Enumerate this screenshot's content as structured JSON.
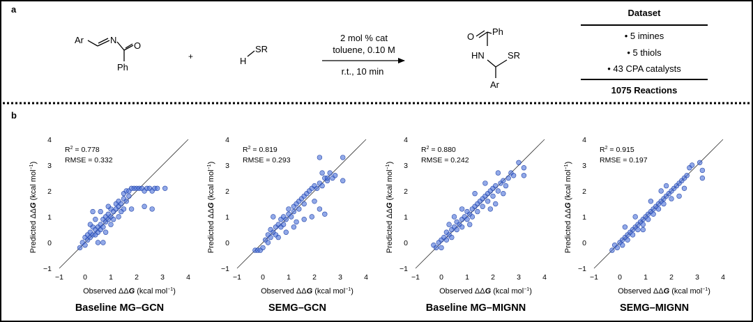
{
  "panel_a": {
    "label": "a",
    "reactant1": {
      "ar": "Ar",
      "n": "N",
      "o": "O",
      "ph": "Ph"
    },
    "plus": "+",
    "reactant2": {
      "h": "H",
      "sr": "SR"
    },
    "conditions": {
      "line1": "2 mol % cat",
      "line2": "toluene, 0.10 M",
      "line3": "r.t., 10 min"
    },
    "product": {
      "o": "O",
      "ph": "Ph",
      "hn": "HN",
      "sr": "SR",
      "ar": "Ar"
    },
    "dataset": {
      "title": "Dataset",
      "items": [
        "• 5 imines",
        "• 5 thiols",
        "• 43 CPA catalysts"
      ],
      "total": "1075 Reactions"
    }
  },
  "panel_b": {
    "label": "b",
    "xlabel": "Observed ΔΔG (kcal mol⁻¹)",
    "ylabel": "Predicted ΔΔG (kcal mol⁻¹)",
    "ticks": [
      "−1",
      "0",
      "1",
      "2",
      "3",
      "4"
    ]
  },
  "colors": {
    "point_fill": "#4a6fd8",
    "point_stroke": "#2244a8",
    "line": "#333333"
  },
  "chart_data": [
    {
      "type": "scatter",
      "title": "Baseline MG–GCN",
      "xlabel": "Observed ΔΔG (kcal mol⁻¹)",
      "ylabel": "Predicted ΔΔG (kcal mol⁻¹)",
      "xlim": [
        -1,
        4
      ],
      "ylim": [
        -1,
        4
      ],
      "stats": {
        "r2": "0.778",
        "rmse": "0.332"
      },
      "identity_line": true,
      "grid": false,
      "points": [
        [
          -0.2,
          -0.2
        ],
        [
          -0.1,
          0.0
        ],
        [
          0.0,
          -0.1
        ],
        [
          0.0,
          0.2
        ],
        [
          0.1,
          0.3
        ],
        [
          0.1,
          0.1
        ],
        [
          0.2,
          0.4
        ],
        [
          0.2,
          0.2
        ],
        [
          0.3,
          0.3
        ],
        [
          0.3,
          0.6
        ],
        [
          0.4,
          0.5
        ],
        [
          0.4,
          0.3
        ],
        [
          0.5,
          0.6
        ],
        [
          0.5,
          0.4
        ],
        [
          0.6,
          0.7
        ],
        [
          0.6,
          0.5
        ],
        [
          0.7,
          0.9
        ],
        [
          0.7,
          0.6
        ],
        [
          0.8,
          0.8
        ],
        [
          0.8,
          1.0
        ],
        [
          0.9,
          0.9
        ],
        [
          0.9,
          1.1
        ],
        [
          1.0,
          1.0
        ],
        [
          1.0,
          1.3
        ],
        [
          1.1,
          1.2
        ],
        [
          1.1,
          0.9
        ],
        [
          1.2,
          1.3
        ],
        [
          1.2,
          1.5
        ],
        [
          1.3,
          1.4
        ],
        [
          1.3,
          1.6
        ],
        [
          1.4,
          1.5
        ],
        [
          1.4,
          1.2
        ],
        [
          1.5,
          1.7
        ],
        [
          1.5,
          1.9
        ],
        [
          1.6,
          2.0
        ],
        [
          1.6,
          1.6
        ],
        [
          1.7,
          2.0
        ],
        [
          1.7,
          1.8
        ],
        [
          1.8,
          2.1
        ],
        [
          1.9,
          2.1
        ],
        [
          2.0,
          2.1
        ],
        [
          2.1,
          2.1
        ],
        [
          2.2,
          2.1
        ],
        [
          2.3,
          2.0
        ],
        [
          2.4,
          2.1
        ],
        [
          2.5,
          2.1
        ],
        [
          2.6,
          2.0
        ],
        [
          2.7,
          2.1
        ],
        [
          2.8,
          2.1
        ],
        [
          3.1,
          2.1
        ],
        [
          2.3,
          1.4
        ],
        [
          2.6,
          1.3
        ],
        [
          1.8,
          1.3
        ],
        [
          0.3,
          1.2
        ],
        [
          0.6,
          1.2
        ],
        [
          0.9,
          1.4
        ],
        [
          0.5,
          0.0
        ],
        [
          0.7,
          0.0
        ],
        [
          1.0,
          0.7
        ],
        [
          1.3,
          1.0
        ],
        [
          0.2,
          0.7
        ],
        [
          0.8,
          0.4
        ],
        [
          1.5,
          1.3
        ],
        [
          0.4,
          0.9
        ]
      ]
    },
    {
      "type": "scatter",
      "title": "SEMG–GCN",
      "xlabel": "Observed ΔΔG (kcal mol⁻¹)",
      "ylabel": "Predicted ΔΔG (kcal mol⁻¹)",
      "xlim": [
        -1,
        4
      ],
      "ylim": [
        -1,
        4
      ],
      "stats": {
        "r2": "0.819",
        "rmse": "0.293"
      },
      "identity_line": true,
      "grid": false,
      "points": [
        [
          -0.3,
          -0.3
        ],
        [
          -0.2,
          -0.3
        ],
        [
          -0.1,
          -0.3
        ],
        [
          0.0,
          -0.2
        ],
        [
          0.1,
          0.1
        ],
        [
          0.2,
          0.0
        ],
        [
          0.2,
          0.3
        ],
        [
          0.3,
          0.5
        ],
        [
          0.3,
          0.2
        ],
        [
          0.4,
          0.4
        ],
        [
          0.5,
          0.6
        ],
        [
          0.5,
          0.3
        ],
        [
          0.6,
          0.7
        ],
        [
          0.7,
          0.6
        ],
        [
          0.7,
          0.9
        ],
        [
          0.8,
          1.0
        ],
        [
          0.8,
          0.7
        ],
        [
          0.9,
          0.9
        ],
        [
          1.0,
          1.1
        ],
        [
          1.0,
          1.3
        ],
        [
          1.1,
          1.0
        ],
        [
          1.2,
          1.4
        ],
        [
          1.2,
          1.2
        ],
        [
          1.3,
          1.5
        ],
        [
          1.4,
          1.3
        ],
        [
          1.4,
          1.6
        ],
        [
          1.5,
          1.7
        ],
        [
          1.6,
          1.8
        ],
        [
          1.6,
          1.5
        ],
        [
          1.7,
          1.9
        ],
        [
          1.8,
          2.0
        ],
        [
          1.9,
          2.1
        ],
        [
          2.0,
          2.2
        ],
        [
          2.1,
          2.1
        ],
        [
          2.2,
          2.3
        ],
        [
          2.3,
          2.2
        ],
        [
          2.4,
          2.5
        ],
        [
          2.5,
          2.4
        ],
        [
          2.6,
          2.7
        ],
        [
          2.7,
          2.5
        ],
        [
          2.8,
          2.6
        ],
        [
          3.1,
          2.4
        ],
        [
          3.1,
          3.3
        ],
        [
          2.2,
          3.3
        ],
        [
          2.3,
          2.7
        ],
        [
          2.5,
          2.5
        ],
        [
          2.2,
          1.3
        ],
        [
          2.4,
          1.1
        ],
        [
          1.9,
          1.0
        ],
        [
          0.9,
          0.4
        ],
        [
          1.2,
          0.6
        ],
        [
          0.4,
          1.0
        ],
        [
          1.6,
          0.9
        ],
        [
          2.0,
          1.6
        ],
        [
          0.6,
          0.2
        ],
        [
          1.3,
          0.8
        ]
      ]
    },
    {
      "type": "scatter",
      "title": "Baseline MG–MIGNN",
      "xlabel": "Observed ΔΔG (kcal mol⁻¹)",
      "ylabel": "Predicted ΔΔG (kcal mol⁻¹)",
      "xlim": [
        -1,
        4
      ],
      "ylim": [
        -1,
        4
      ],
      "stats": {
        "r2": "0.880",
        "rmse": "0.242"
      },
      "identity_line": true,
      "grid": false,
      "points": [
        [
          -0.3,
          -0.1
        ],
        [
          -0.2,
          -0.2
        ],
        [
          -0.1,
          0.0
        ],
        [
          0.0,
          0.1
        ],
        [
          0.0,
          -0.2
        ],
        [
          0.1,
          0.2
        ],
        [
          0.2,
          0.1
        ],
        [
          0.2,
          0.4
        ],
        [
          0.3,
          0.3
        ],
        [
          0.4,
          0.5
        ],
        [
          0.4,
          0.2
        ],
        [
          0.5,
          0.6
        ],
        [
          0.6,
          0.5
        ],
        [
          0.6,
          0.8
        ],
        [
          0.7,
          0.7
        ],
        [
          0.8,
          0.9
        ],
        [
          0.8,
          0.6
        ],
        [
          0.9,
          1.0
        ],
        [
          1.0,
          0.9
        ],
        [
          1.0,
          1.2
        ],
        [
          1.1,
          1.1
        ],
        [
          1.2,
          1.3
        ],
        [
          1.2,
          1.0
        ],
        [
          1.3,
          1.4
        ],
        [
          1.4,
          1.5
        ],
        [
          1.4,
          1.2
        ],
        [
          1.5,
          1.6
        ],
        [
          1.6,
          1.7
        ],
        [
          1.6,
          1.4
        ],
        [
          1.7,
          1.8
        ],
        [
          1.8,
          1.9
        ],
        [
          1.8,
          1.6
        ],
        [
          1.9,
          2.0
        ],
        [
          2.0,
          2.1
        ],
        [
          2.0,
          1.8
        ],
        [
          2.1,
          2.2
        ],
        [
          2.2,
          2.0
        ],
        [
          2.3,
          2.3
        ],
        [
          2.4,
          2.4
        ],
        [
          2.5,
          2.2
        ],
        [
          2.6,
          2.5
        ],
        [
          2.7,
          2.7
        ],
        [
          2.8,
          2.6
        ],
        [
          3.0,
          3.1
        ],
        [
          3.2,
          2.6
        ],
        [
          3.2,
          2.9
        ],
        [
          2.1,
          1.5
        ],
        [
          1.9,
          1.3
        ],
        [
          0.5,
          1.0
        ],
        [
          1.1,
          0.7
        ],
        [
          0.3,
          0.7
        ],
        [
          2.4,
          1.9
        ],
        [
          1.3,
          1.9
        ],
        [
          0.8,
          1.3
        ],
        [
          1.7,
          2.3
        ],
        [
          2.2,
          2.7
        ]
      ]
    },
    {
      "type": "scatter",
      "title": "SEMG–MIGNN",
      "xlabel": "Observed ΔΔG (kcal mol⁻¹)",
      "ylabel": "Predicted ΔΔG (kcal mol⁻¹)",
      "xlim": [
        -1,
        4
      ],
      "ylim": [
        -1,
        4
      ],
      "stats": {
        "r2": "0.915",
        "rmse": "0.197"
      },
      "identity_line": true,
      "grid": false,
      "points": [
        [
          -0.3,
          -0.3
        ],
        [
          -0.2,
          -0.1
        ],
        [
          -0.1,
          -0.2
        ],
        [
          0.0,
          0.0
        ],
        [
          0.1,
          0.1
        ],
        [
          0.1,
          -0.1
        ],
        [
          0.2,
          0.2
        ],
        [
          0.3,
          0.3
        ],
        [
          0.3,
          0.1
        ],
        [
          0.4,
          0.4
        ],
        [
          0.5,
          0.5
        ],
        [
          0.5,
          0.3
        ],
        [
          0.6,
          0.6
        ],
        [
          0.7,
          0.7
        ],
        [
          0.7,
          0.5
        ],
        [
          0.8,
          0.8
        ],
        [
          0.9,
          0.9
        ],
        [
          0.9,
          0.7
        ],
        [
          1.0,
          1.0
        ],
        [
          1.1,
          1.1
        ],
        [
          1.1,
          0.9
        ],
        [
          1.2,
          1.2
        ],
        [
          1.3,
          1.3
        ],
        [
          1.3,
          1.1
        ],
        [
          1.4,
          1.4
        ],
        [
          1.5,
          1.5
        ],
        [
          1.5,
          1.3
        ],
        [
          1.6,
          1.6
        ],
        [
          1.7,
          1.7
        ],
        [
          1.7,
          1.5
        ],
        [
          1.8,
          1.8
        ],
        [
          1.9,
          1.9
        ],
        [
          2.0,
          2.0
        ],
        [
          2.1,
          2.1
        ],
        [
          2.2,
          2.2
        ],
        [
          2.3,
          2.3
        ],
        [
          2.4,
          2.4
        ],
        [
          2.5,
          2.5
        ],
        [
          2.6,
          2.6
        ],
        [
          2.7,
          2.9
        ],
        [
          2.8,
          3.0
        ],
        [
          3.1,
          3.1
        ],
        [
          3.2,
          2.5
        ],
        [
          3.2,
          2.8
        ],
        [
          2.3,
          1.8
        ],
        [
          2.0,
          1.7
        ],
        [
          1.2,
          1.6
        ],
        [
          0.6,
          1.0
        ],
        [
          0.9,
          0.5
        ],
        [
          1.6,
          2.0
        ],
        [
          0.2,
          0.6
        ],
        [
          2.5,
          2.1
        ],
        [
          1.8,
          2.2
        ]
      ]
    }
  ]
}
